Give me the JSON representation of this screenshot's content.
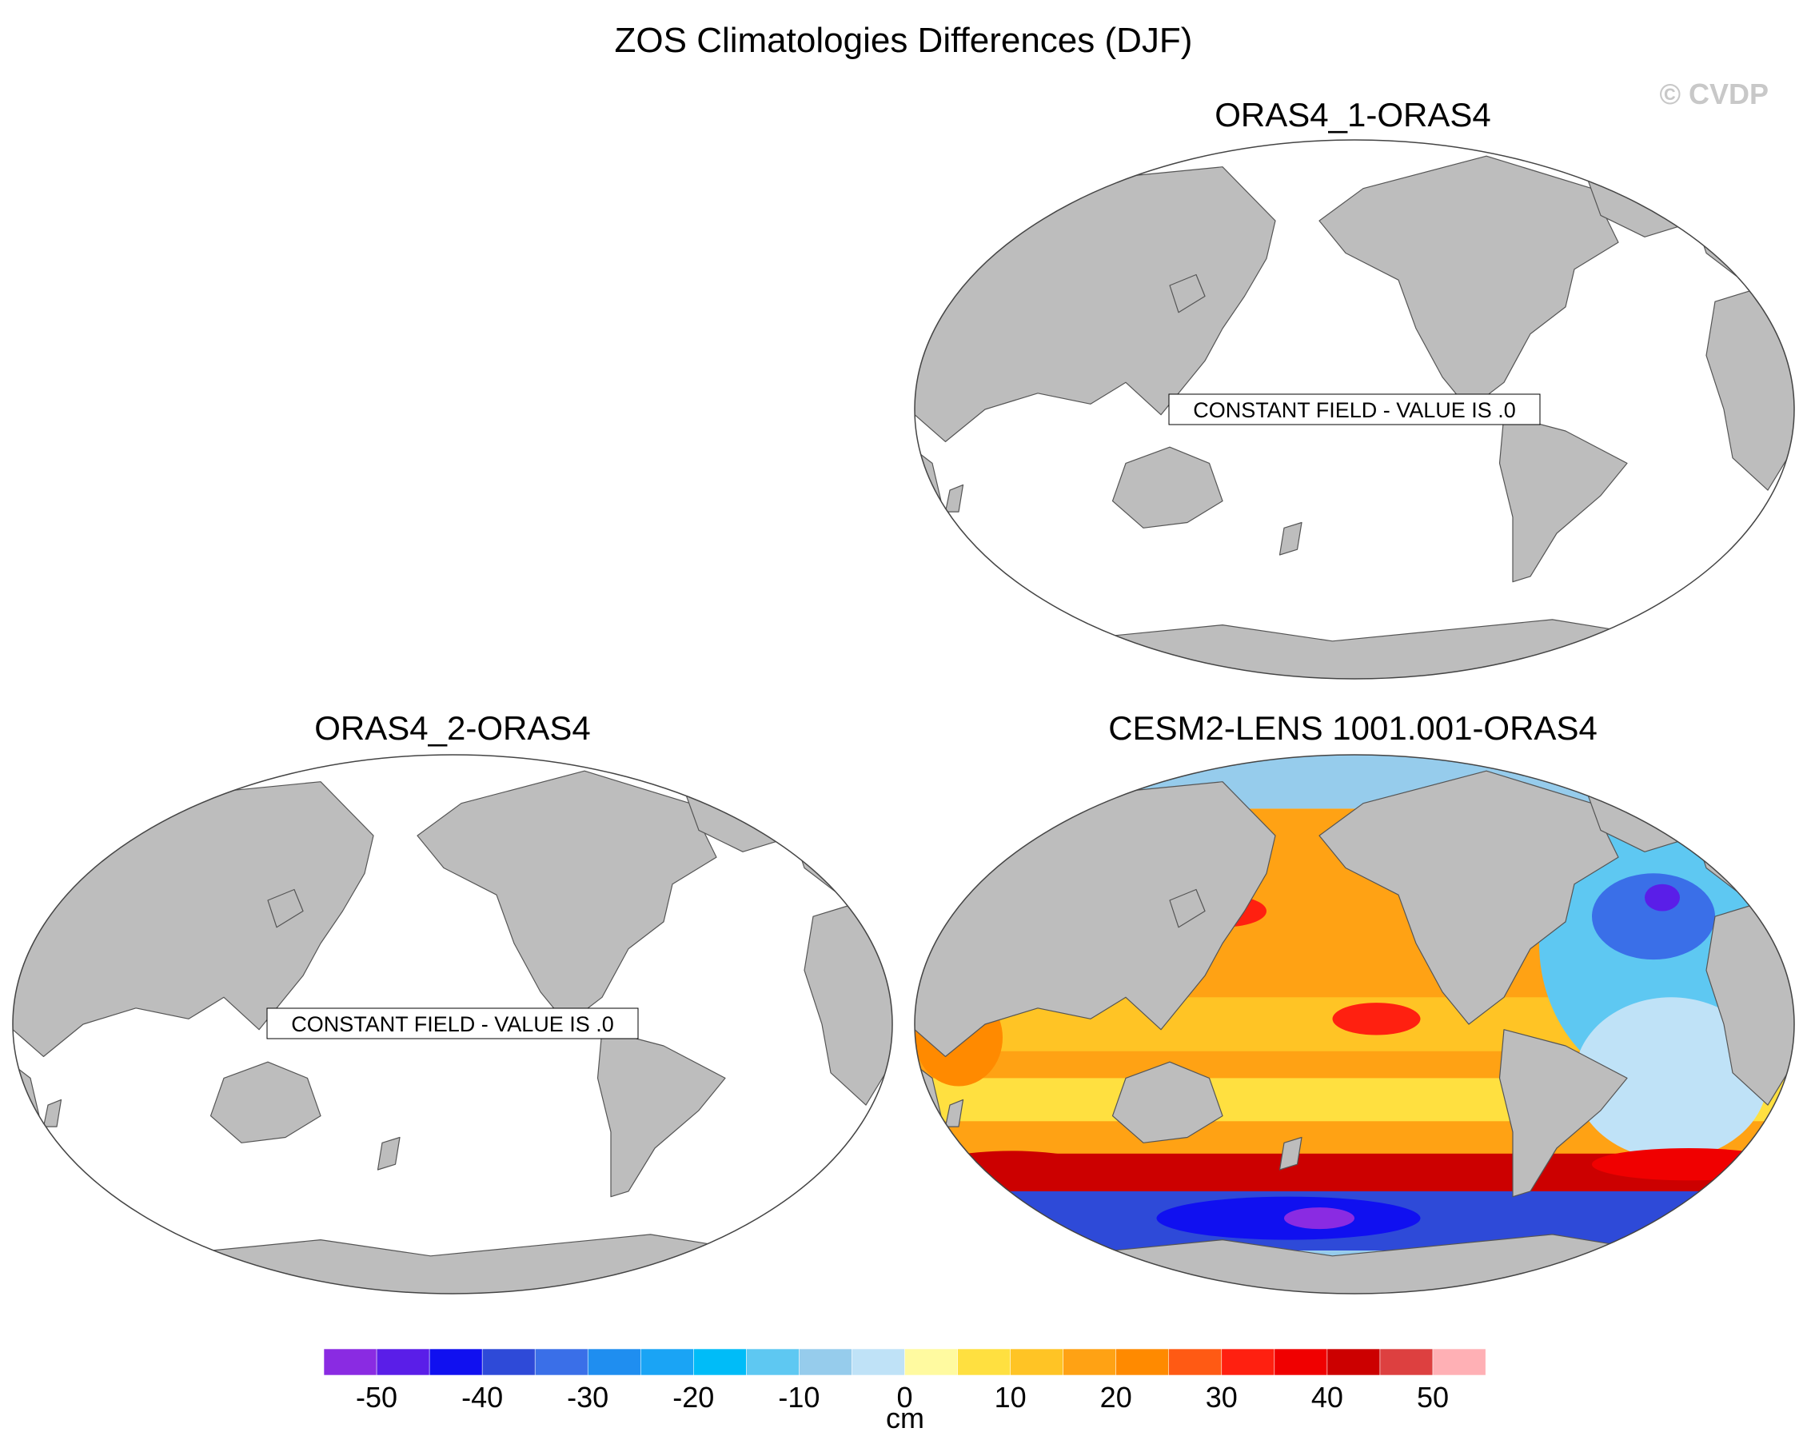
{
  "title": "ZOS Climatologies Differences (DJF)",
  "watermark": "© CVDP",
  "panels": [
    {
      "id": "oras4_1",
      "title": "ORAS4_1-ORAS4",
      "note": "CONSTANT FIELD - VALUE IS .0",
      "field": "constant"
    },
    {
      "id": "oras4_2",
      "title": "ORAS4_2-ORAS4",
      "note": "CONSTANT FIELD - VALUE IS .0",
      "field": "constant"
    },
    {
      "id": "cesm2",
      "title": "CESM2-LENS 1001.001-ORAS4",
      "note": "",
      "field": "anomaly"
    }
  ],
  "colorbar": {
    "unit": "cm",
    "tick_labels": [
      "-50",
      "-40",
      "-30",
      "-20",
      "-10",
      "0",
      "10",
      "20",
      "30",
      "40",
      "50"
    ],
    "colors": [
      "#8a2be2",
      "#5a1ee8",
      "#1010f0",
      "#2e4ad8",
      "#3a6fe8",
      "#1f8ef0",
      "#1aa4f5",
      "#00bcf8",
      "#5ec8f2",
      "#96ccec",
      "#bfe2f7",
      "#fffaa0",
      "#ffe040",
      "#ffc425",
      "#ffa214",
      "#ff8a00",
      "#ff5a14",
      "#ff2010",
      "#f00000",
      "#cc0000",
      "#dd4040",
      "#ffb0b5"
    ]
  },
  "colors": {
    "land": "#bdbdbd",
    "ocean": "#ffffff",
    "coast": "#555555"
  }
}
